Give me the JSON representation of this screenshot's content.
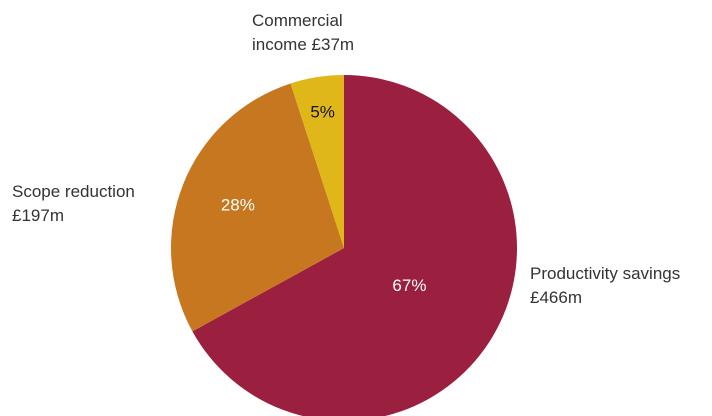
{
  "chart_data": {
    "type": "pie",
    "categories": [
      "Productivity savings",
      "Scope reduction",
      "Commercial income"
    ],
    "values": [
      67,
      28,
      5
    ],
    "value_labels": [
      "67%",
      "28%",
      "5%"
    ],
    "amounts": [
      466,
      197,
      37
    ],
    "amount_labels": [
      "£466m",
      "£197m",
      "£37m"
    ],
    "colors": [
      "#9b1f3f",
      "#c7771f",
      "#dfb719"
    ]
  }
}
